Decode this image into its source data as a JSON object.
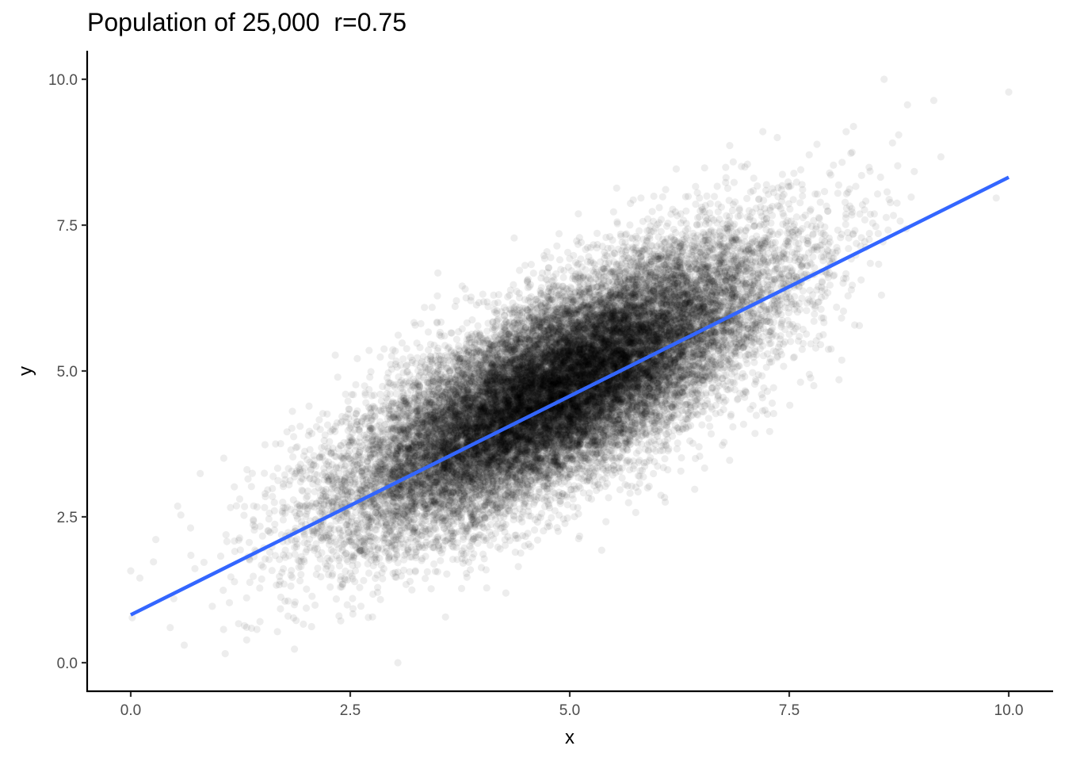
{
  "chart_data": {
    "type": "scatter",
    "title": "Population of 25,000  r=0.75",
    "xlabel": "x",
    "ylabel": "y",
    "n_points": 25000,
    "correlation": 0.75,
    "xlim": [
      -0.5,
      10.5
    ],
    "ylim": [
      -0.5,
      10.5
    ],
    "x_ticks": [
      "0.0",
      "2.5",
      "5.0",
      "7.5",
      "10.0"
    ],
    "y_ticks": [
      "0.0",
      "2.5",
      "5.0",
      "7.5",
      "10.0"
    ],
    "x_tick_values": [
      0,
      2.5,
      5,
      7.5,
      10
    ],
    "y_tick_values": [
      0,
      2.5,
      5,
      7.5,
      10
    ],
    "fit_line": {
      "intercept": 0.82,
      "slope": 0.75,
      "x_range": [
        0,
        10
      ],
      "color": "#3366FF"
    },
    "point_color": "#000000",
    "point_alpha": 0.07,
    "grid": false
  }
}
